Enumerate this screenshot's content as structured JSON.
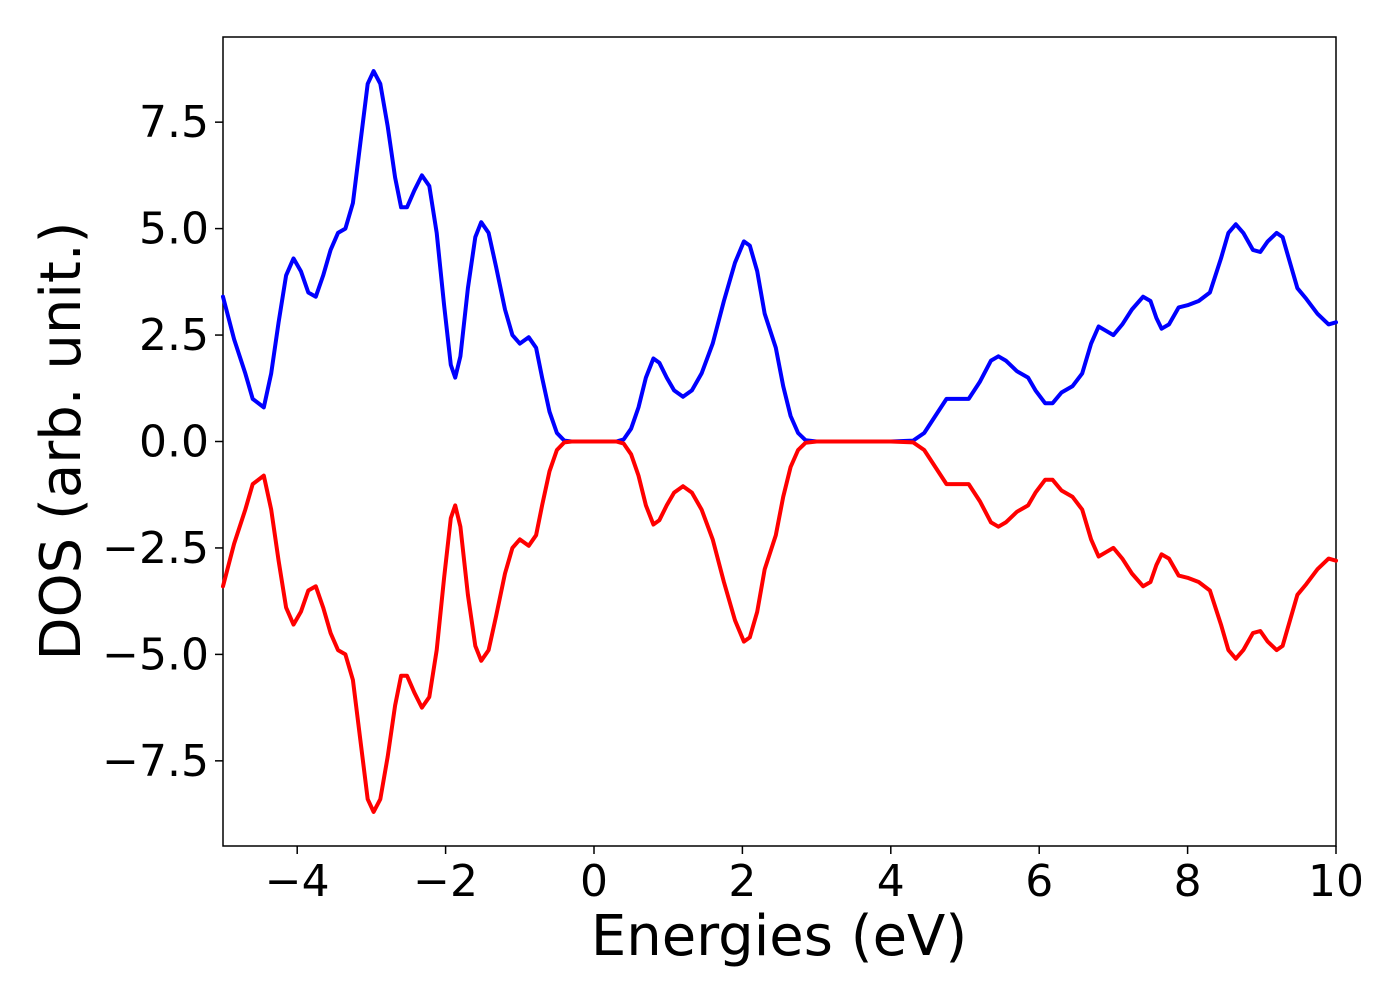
{
  "chart_data": {
    "type": "line",
    "title": "",
    "xlabel": "Energies (eV)",
    "ylabel": "DOS (arb. unit.)",
    "xlim": [
      -5,
      10
    ],
    "ylim": [
      -9.5,
      9.5
    ],
    "xticks": [
      -4,
      -2,
      0,
      2,
      4,
      6,
      8,
      10
    ],
    "xtick_labels": [
      "−4",
      "−2",
      "0",
      "2",
      "4",
      "6",
      "8",
      "10"
    ],
    "yticks": [
      7.5,
      5.0,
      2.5,
      0.0,
      -2.5,
      -5.0,
      -7.5
    ],
    "ytick_labels": [
      "7.5",
      "5.0",
      "2.5",
      "0.0",
      "−2.5",
      "−5.0",
      "−7.5"
    ],
    "grid": false,
    "legend": "none",
    "series": [
      {
        "color": "#0000ff",
        "points": [
          [
            -5.0,
            3.4
          ],
          [
            -4.85,
            2.4
          ],
          [
            -4.7,
            1.6
          ],
          [
            -4.6,
            1.0
          ],
          [
            -4.45,
            0.8
          ],
          [
            -4.35,
            1.6
          ],
          [
            -4.25,
            2.8
          ],
          [
            -4.15,
            3.9
          ],
          [
            -4.05,
            4.3
          ],
          [
            -3.95,
            4.0
          ],
          [
            -3.85,
            3.5
          ],
          [
            -3.75,
            3.4
          ],
          [
            -3.65,
            3.9
          ],
          [
            -3.55,
            4.5
          ],
          [
            -3.45,
            4.9
          ],
          [
            -3.35,
            5.0
          ],
          [
            -3.25,
            5.6
          ],
          [
            -3.15,
            7.0
          ],
          [
            -3.05,
            8.4
          ],
          [
            -2.97,
            8.7
          ],
          [
            -2.88,
            8.4
          ],
          [
            -2.78,
            7.4
          ],
          [
            -2.68,
            6.2
          ],
          [
            -2.6,
            5.5
          ],
          [
            -2.52,
            5.5
          ],
          [
            -2.42,
            5.9
          ],
          [
            -2.32,
            6.25
          ],
          [
            -2.22,
            6.0
          ],
          [
            -2.12,
            4.9
          ],
          [
            -2.02,
            3.2
          ],
          [
            -1.93,
            1.8
          ],
          [
            -1.87,
            1.5
          ],
          [
            -1.8,
            2.0
          ],
          [
            -1.7,
            3.6
          ],
          [
            -1.6,
            4.8
          ],
          [
            -1.52,
            5.15
          ],
          [
            -1.42,
            4.9
          ],
          [
            -1.32,
            4.1
          ],
          [
            -1.2,
            3.1
          ],
          [
            -1.1,
            2.5
          ],
          [
            -1.0,
            2.3
          ],
          [
            -0.88,
            2.45
          ],
          [
            -0.78,
            2.2
          ],
          [
            -0.7,
            1.5
          ],
          [
            -0.6,
            0.7
          ],
          [
            -0.5,
            0.2
          ],
          [
            -0.4,
            0.02
          ],
          [
            -0.3,
            0.0
          ],
          [
            0.0,
            0.0
          ],
          [
            0.3,
            0.0
          ],
          [
            0.4,
            0.05
          ],
          [
            0.5,
            0.3
          ],
          [
            0.6,
            0.8
          ],
          [
            0.7,
            1.5
          ],
          [
            0.8,
            1.95
          ],
          [
            0.88,
            1.85
          ],
          [
            0.98,
            1.5
          ],
          [
            1.08,
            1.2
          ],
          [
            1.2,
            1.05
          ],
          [
            1.32,
            1.2
          ],
          [
            1.45,
            1.6
          ],
          [
            1.6,
            2.3
          ],
          [
            1.75,
            3.3
          ],
          [
            1.9,
            4.2
          ],
          [
            2.02,
            4.7
          ],
          [
            2.1,
            4.6
          ],
          [
            2.2,
            4.0
          ],
          [
            2.3,
            3.0
          ],
          [
            2.45,
            2.2
          ],
          [
            2.55,
            1.3
          ],
          [
            2.65,
            0.6
          ],
          [
            2.75,
            0.2
          ],
          [
            2.85,
            0.03
          ],
          [
            3.0,
            0.0
          ],
          [
            4.0,
            0.0
          ],
          [
            4.3,
            0.02
          ],
          [
            4.45,
            0.2
          ],
          [
            4.6,
            0.6
          ],
          [
            4.75,
            1.0
          ],
          [
            4.9,
            1.0
          ],
          [
            5.05,
            1.0
          ],
          [
            5.2,
            1.4
          ],
          [
            5.35,
            1.9
          ],
          [
            5.45,
            2.0
          ],
          [
            5.55,
            1.9
          ],
          [
            5.7,
            1.65
          ],
          [
            5.85,
            1.5
          ],
          [
            5.95,
            1.2
          ],
          [
            6.08,
            0.9
          ],
          [
            6.18,
            0.9
          ],
          [
            6.3,
            1.15
          ],
          [
            6.45,
            1.3
          ],
          [
            6.58,
            1.6
          ],
          [
            6.7,
            2.3
          ],
          [
            6.8,
            2.7
          ],
          [
            6.9,
            2.6
          ],
          [
            7.0,
            2.5
          ],
          [
            7.12,
            2.75
          ],
          [
            7.25,
            3.1
          ],
          [
            7.4,
            3.4
          ],
          [
            7.5,
            3.3
          ],
          [
            7.58,
            2.9
          ],
          [
            7.65,
            2.65
          ],
          [
            7.75,
            2.75
          ],
          [
            7.88,
            3.15
          ],
          [
            8.0,
            3.2
          ],
          [
            8.15,
            3.3
          ],
          [
            8.3,
            3.5
          ],
          [
            8.45,
            4.3
          ],
          [
            8.55,
            4.9
          ],
          [
            8.65,
            5.1
          ],
          [
            8.75,
            4.9
          ],
          [
            8.88,
            4.5
          ],
          [
            8.98,
            4.45
          ],
          [
            9.08,
            4.7
          ],
          [
            9.2,
            4.9
          ],
          [
            9.28,
            4.8
          ],
          [
            9.38,
            4.2
          ],
          [
            9.48,
            3.6
          ],
          [
            9.6,
            3.35
          ],
          [
            9.75,
            3.0
          ],
          [
            9.9,
            2.75
          ],
          [
            10.0,
            2.8
          ]
        ]
      },
      {
        "color": "#ff0000",
        "mirror_of_series": 0
      }
    ]
  }
}
